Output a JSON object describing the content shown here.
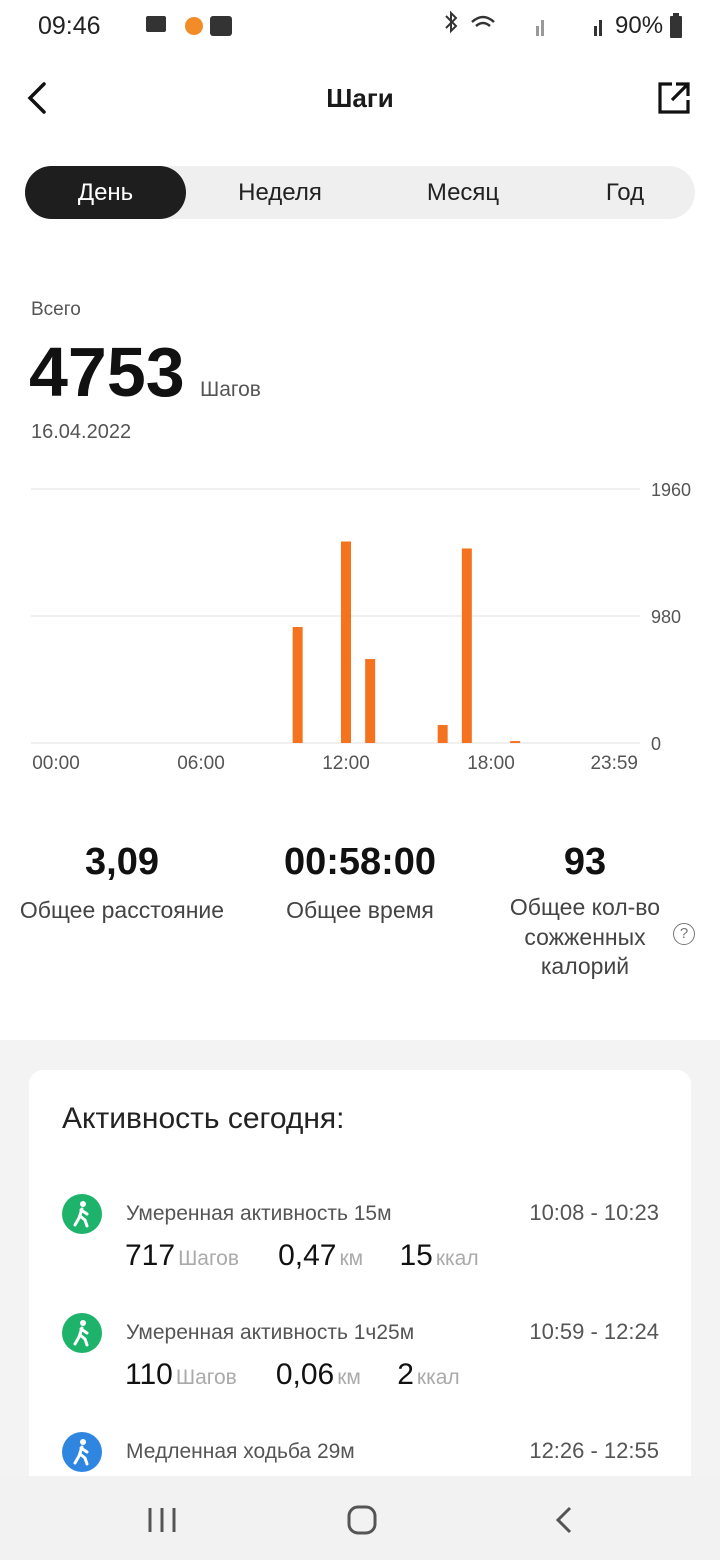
{
  "status_bar": {
    "time": "09:46",
    "battery": "90%"
  },
  "header": {
    "title": "Шаги"
  },
  "tabs": [
    "День",
    "Неделя",
    "Месяц",
    "Год"
  ],
  "summary": {
    "label": "Всего",
    "value": "4753",
    "unit": "Шагов",
    "date": "16.04.2022"
  },
  "chart_data": {
    "type": "bar",
    "x": [
      10,
      12,
      13,
      16,
      17,
      19
    ],
    "values": [
      895,
      1555,
      648,
      139,
      1501,
      15
    ],
    "color": "#f5731f",
    "xlim": [
      0,
      24
    ],
    "xticks": [
      {
        "value": 0,
        "label": "00:00"
      },
      {
        "value": 6,
        "label": "06:00"
      },
      {
        "value": 12,
        "label": "12:00"
      },
      {
        "value": 18,
        "label": "18:00"
      },
      {
        "value": 23.983,
        "label": "23:59"
      }
    ],
    "ylim": [
      0,
      1960
    ],
    "yticks": [
      0,
      980,
      1960
    ],
    "grid": true
  },
  "stats": [
    {
      "value": "3,09",
      "label": "Общее расстояние"
    },
    {
      "value": "00:58:00",
      "label": "Общее время"
    },
    {
      "value": "93",
      "label": "Общее кол-во сожженных калорий"
    }
  ],
  "activity": {
    "title": "Активность сегодня:",
    "items": [
      {
        "name": "Умеренная активность 15м",
        "time": "10:08 - 10:23",
        "steps": "717",
        "steps_unit": "Шагов",
        "distance": "0,47",
        "distance_unit": "км",
        "kcal": "15",
        "kcal_unit": "ккал",
        "color": "#1db36b"
      },
      {
        "name": "Умеренная активность 1ч25м",
        "time": "10:59 - 12:24",
        "steps": "110",
        "steps_unit": "Шагов",
        "distance": "0,06",
        "distance_unit": "км",
        "kcal": "2",
        "kcal_unit": "ккал",
        "color": "#1db36b"
      },
      {
        "name": "Медленная ходьба 29м",
        "time": "12:26 - 12:55",
        "color": "#2f86e0"
      }
    ]
  }
}
